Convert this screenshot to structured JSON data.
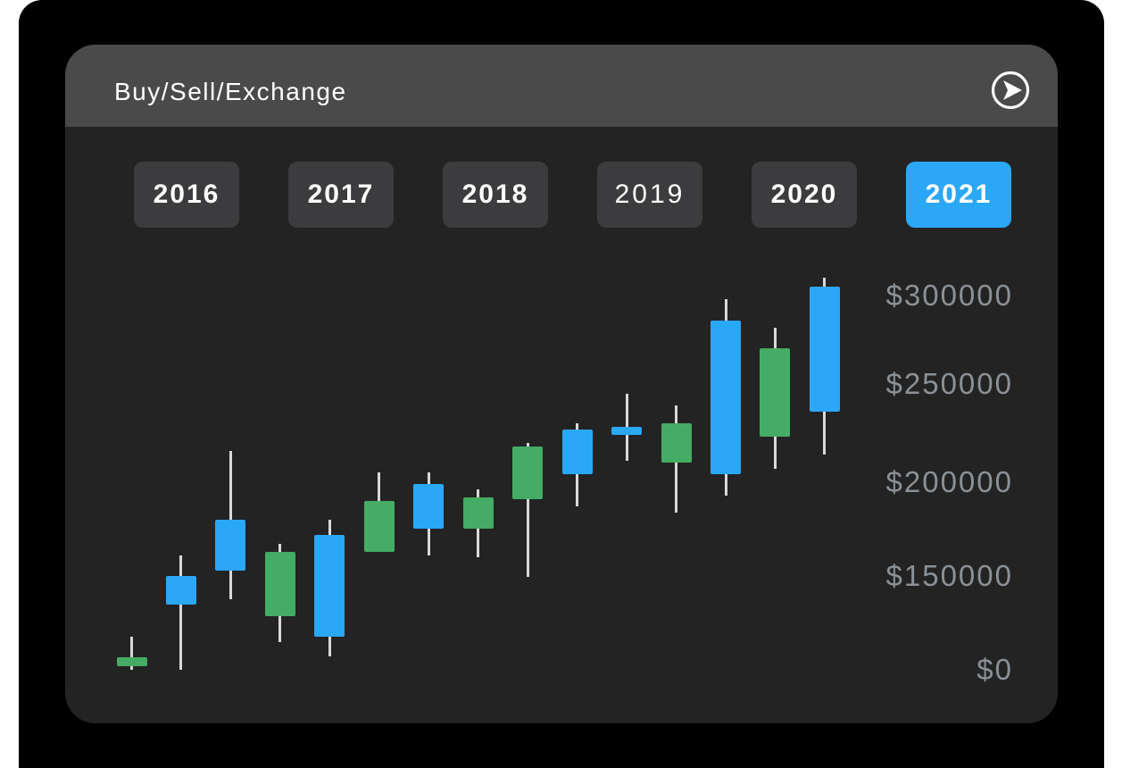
{
  "header": {
    "title": "Buy/Sell/Exchange",
    "action_icon": "circled-play-arrow-icon"
  },
  "tabs": {
    "years": [
      {
        "label": "2016",
        "active": false,
        "bold": true
      },
      {
        "label": "2017",
        "active": false,
        "bold": true
      },
      {
        "label": "2018",
        "active": false,
        "bold": true
      },
      {
        "label": "2019",
        "active": false,
        "bold": false
      },
      {
        "label": "2020",
        "active": false,
        "bold": true
      },
      {
        "label": "2021",
        "active": true,
        "bold": true
      }
    ]
  },
  "chart_data": {
    "type": "candlestick",
    "title": "",
    "grid": false,
    "legend": false,
    "y_axis_side": "right",
    "y_ticks": [
      {
        "label": "$300000",
        "value": 300000
      },
      {
        "label": "$250000",
        "value": 250000
      },
      {
        "label": "$200000",
        "value": 200000
      },
      {
        "label": "$150000",
        "value": 150000
      },
      {
        "label": "$0",
        "value": 0
      }
    ],
    "candles": [
      {
        "open": 6000,
        "high": 53000,
        "low": 0,
        "close": 20000,
        "color": "green"
      },
      {
        "open": 150000,
        "high": 161000,
        "low": 0,
        "close": 104000,
        "color": "blue"
      },
      {
        "open": 180000,
        "high": 216000,
        "low": 113000,
        "close": 153000,
        "color": "blue"
      },
      {
        "open": 86000,
        "high": 167000,
        "low": 44000,
        "close": 163000,
        "color": "green"
      },
      {
        "open": 172000,
        "high": 180000,
        "low": 21000,
        "close": 53000,
        "color": "blue"
      },
      {
        "open": 163000,
        "high": 205000,
        "low": 163000,
        "close": 190000,
        "color": "green"
      },
      {
        "open": 199000,
        "high": 205000,
        "low": 161000,
        "close": 175000,
        "color": "blue"
      },
      {
        "open": 175000,
        "high": 196000,
        "low": 160000,
        "close": 192000,
        "color": "green"
      },
      {
        "open": 191000,
        "high": 220000,
        "low": 149000,
        "close": 218000,
        "color": "green"
      },
      {
        "open": 227000,
        "high": 230000,
        "low": 187000,
        "close": 204000,
        "color": "blue"
      },
      {
        "open": 228000,
        "high": 245000,
        "low": 211000,
        "close": 224000,
        "color": "blue"
      },
      {
        "open": 210000,
        "high": 239000,
        "low": 184000,
        "close": 230000,
        "color": "green"
      },
      {
        "open": 286000,
        "high": 298000,
        "low": 193000,
        "close": 204000,
        "color": "blue"
      },
      {
        "open": 223000,
        "high": 282000,
        "low": 207000,
        "close": 270000,
        "color": "green"
      },
      {
        "open": 305000,
        "high": 310000,
        "low": 214000,
        "close": 236000,
        "color": "blue"
      }
    ],
    "colors": {
      "green": "#45ac65",
      "blue": "#2ba7f8",
      "wick": "#d9d9d9",
      "axis_text": "#8b9197"
    }
  },
  "colors": {
    "page": "#ffffff",
    "backdrop": "#000000",
    "panel": "#232323",
    "header_bar": "#4a4a4a",
    "tab": "#3c3c3e",
    "tab_active": "#2ba7f8",
    "text": "#ffffff"
  }
}
